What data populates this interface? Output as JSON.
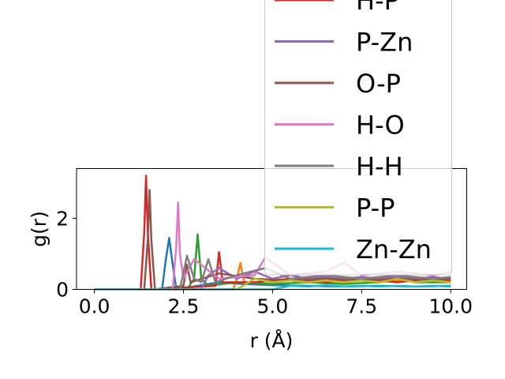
{
  "chart_data": {
    "type": "line",
    "title": "",
    "xlabel": "r (Å)",
    "ylabel": "g(r)",
    "xlim": [
      -0.5,
      10.45
    ],
    "ylim": [
      0,
      3.4
    ],
    "x_ticks": [
      "0.0",
      "2.5",
      "5.0",
      "7.5",
      "10.0"
    ],
    "x_tick_values": [
      0,
      2.5,
      5,
      7.5,
      10
    ],
    "y_ticks": [
      "0",
      "2"
    ],
    "y_tick_values": [
      0,
      2
    ],
    "grid": false,
    "legend_position": "upper-right",
    "legend_visible_entries": [
      "H-P",
      "P-Zn",
      "O-P",
      "H-O",
      "H-H",
      "P-P",
      "Zn-Zn"
    ],
    "series": [
      {
        "name": "",
        "color": "#1f77b4",
        "x": [
          0,
          1.9,
          2.0,
          2.1,
          2.2,
          2.3,
          3.5,
          4.2,
          5.0,
          6.0,
          7.0,
          8.0,
          9.0,
          10.0
        ],
        "y": [
          0,
          0,
          0.8,
          1.45,
          0.7,
          0,
          0.2,
          0.15,
          0.12,
          0.1,
          0.08,
          0.1,
          0.08,
          0.1
        ]
      },
      {
        "name": "",
        "color": "#ff7f0e",
        "x": [
          0,
          3.9,
          4.0,
          4.1,
          4.2,
          5.0,
          5.5,
          6.0,
          6.5,
          7.0,
          7.5,
          8.0,
          8.5,
          9.0,
          9.5,
          10.0
        ],
        "y": [
          0,
          0,
          0.3,
          0.75,
          0.2,
          0.15,
          0.3,
          0.25,
          0.3,
          0.2,
          0.25,
          0.2,
          0.25,
          0.3,
          0.2,
          0.25
        ]
      },
      {
        "name": "",
        "color": "#2ca02c",
        "x": [
          0,
          2.6,
          2.8,
          2.9,
          3.0,
          3.2,
          4.0,
          5.0,
          6.0,
          7.0,
          8.0,
          8.4,
          9.0,
          10.0
        ],
        "y": [
          0,
          0,
          0.3,
          1.55,
          0.3,
          0.1,
          0.2,
          0.15,
          0.2,
          0.15,
          0.2,
          0.4,
          0.2,
          0.2
        ]
      },
      {
        "name": "H-P",
        "color": "#d62728",
        "x": [
          0,
          1.3,
          1.4,
          1.45,
          1.5,
          1.6,
          3.4,
          3.5,
          3.6,
          4.5,
          5.5,
          6.5,
          7.5,
          8.5,
          9.5,
          10.0
        ],
        "y": [
          0,
          0,
          1.6,
          3.2,
          1.6,
          0,
          0.1,
          1.05,
          0.2,
          0.2,
          0.3,
          0.2,
          0.3,
          0.2,
          0.3,
          0.25
        ]
      },
      {
        "name": "P-Zn",
        "color": "#9467bd",
        "x": [
          0,
          3.0,
          3.2,
          3.5,
          4.0,
          4.5,
          5.0,
          5.5,
          6.0,
          6.5,
          7.0,
          7.5,
          8.0,
          8.5,
          9.0,
          9.5,
          10.0
        ],
        "y": [
          0,
          0,
          0.4,
          0.6,
          0.3,
          0.5,
          0.3,
          0.4,
          0.3,
          0.35,
          0.3,
          0.35,
          0.3,
          0.35,
          0.3,
          0.35,
          0.3
        ]
      },
      {
        "name": "O-P",
        "color": "#8c564b",
        "x": [
          0,
          1.4,
          1.5,
          1.55,
          1.6,
          1.7,
          2.5,
          2.6,
          2.7,
          3.5,
          4.5,
          5.5,
          6.5,
          7.5,
          8.5,
          9.5,
          10.0
        ],
        "y": [
          0,
          0,
          1.4,
          2.8,
          1.4,
          0,
          0.1,
          0.7,
          0.2,
          0.45,
          0.3,
          0.25,
          0.3,
          0.25,
          0.3,
          0.25,
          0.3
        ]
      },
      {
        "name": "H-O",
        "color": "#e377c2",
        "x": [
          0,
          2.2,
          2.3,
          2.35,
          2.4,
          2.5,
          2.8,
          3.5,
          4.5,
          4.8,
          5.5,
          6.5,
          7.0,
          7.5,
          8.5,
          9.5,
          10.0
        ],
        "y": [
          0,
          0,
          1.2,
          2.45,
          1.0,
          0.3,
          0.85,
          0.3,
          0.4,
          0.9,
          0.4,
          0.5,
          0.75,
          0.4,
          0.5,
          0.4,
          0.5
        ]
      },
      {
        "name": "H-H",
        "color": "#7f7f7f",
        "x": [
          0,
          2.4,
          2.6,
          2.8,
          3.0,
          3.2,
          3.4,
          4.0,
          4.8,
          5.5,
          6.5,
          7.5,
          8.5,
          9.5,
          10.0
        ],
        "y": [
          0,
          0,
          0.95,
          0.3,
          0.2,
          0.85,
          0.2,
          0.4,
          0.6,
          0.3,
          0.4,
          0.3,
          0.4,
          0.3,
          0.35
        ]
      },
      {
        "name": "P-P",
        "color": "#bcbd22",
        "x": [
          0,
          4.0,
          4.5,
          5.0,
          5.5,
          6.0,
          6.5,
          7.0,
          7.5,
          8.0,
          8.5,
          9.0,
          9.5,
          10.0
        ],
        "y": [
          0,
          0,
          0.3,
          0.2,
          0.25,
          0.2,
          0.25,
          0.2,
          0.25,
          0.2,
          0.3,
          0.2,
          0.25,
          0.2
        ]
      },
      {
        "name": "Zn-Zn",
        "color": "#17becf",
        "x": [
          0,
          5.0,
          5.5,
          6.0,
          6.5,
          7.0,
          7.5,
          8.0,
          8.5,
          9.0,
          9.5,
          10.0
        ],
        "y": [
          0,
          0,
          0.1,
          0.08,
          0.12,
          0.08,
          0.1,
          0.08,
          0.1,
          0.08,
          0.1,
          0.08
        ]
      }
    ]
  }
}
